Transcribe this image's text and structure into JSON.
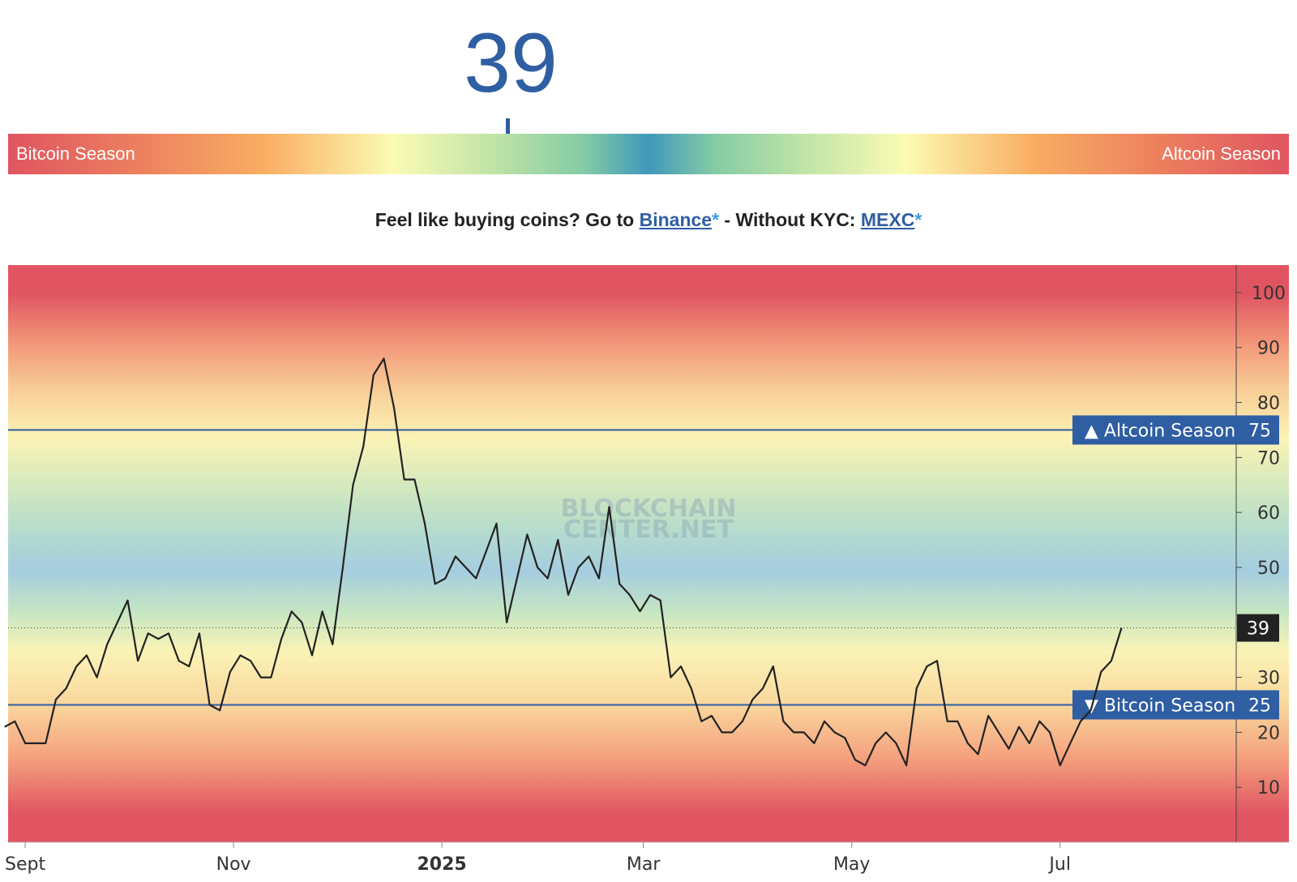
{
  "header": {
    "index_value": "39",
    "bitcoin_label": "Bitcoin Season",
    "altcoin_label": "Altcoin Season",
    "index_fraction": 0.39
  },
  "promo": {
    "prefix": "Feel like buying coins? Go to ",
    "binance": "Binance",
    "star": "*",
    "middle": " - Without KYC: ",
    "mexc": "MEXC"
  },
  "colors": {
    "accent": "#2f5ea3",
    "line": "#222222",
    "red": "#e05561",
    "blue": "#3f98bb",
    "yellow": "#fbfbb5"
  },
  "watermark": [
    "BLOCKCHAIN",
    "CENTER.NET"
  ],
  "chart_data": {
    "type": "line",
    "title": "",
    "ylim": [
      0,
      105
    ],
    "y_ticks": [
      10,
      20,
      30,
      40,
      50,
      60,
      70,
      80,
      90,
      100
    ],
    "y_tick_labels": [
      "10",
      "20",
      "30",
      "50",
      "60",
      "70",
      "80",
      "90",
      "100"
    ],
    "x_tick_labels": [
      "Sept",
      "Nov",
      "2025",
      "Mar",
      "May",
      "Jul"
    ],
    "x_tick_dates": [
      "2024-09-01",
      "2024-11-01",
      "2025-01-01",
      "2025-03-01",
      "2025-05-01",
      "2025-07-01"
    ],
    "xlim": [
      "2024-08-27",
      "2025-09-06"
    ],
    "grid": false,
    "thresholds": [
      {
        "label": "▲ Altcoin Season",
        "value": 75
      },
      {
        "label": "▼ Bitcoin Season",
        "value": 25
      }
    ],
    "current": {
      "label": "39",
      "value": 39
    },
    "series": [
      {
        "dates": [
          "2024-08-26",
          "2024-08-29",
          "2024-09-01",
          "2024-09-04",
          "2024-09-07",
          "2024-09-10",
          "2024-09-13",
          "2024-09-16",
          "2024-09-19",
          "2024-09-22",
          "2024-09-25",
          "2024-09-28",
          "2024-10-01",
          "2024-10-04",
          "2024-10-07",
          "2024-10-10",
          "2024-10-13",
          "2024-10-16",
          "2024-10-19",
          "2024-10-22",
          "2024-10-25",
          "2024-10-28",
          "2024-10-31",
          "2024-11-03",
          "2024-11-06",
          "2024-11-09",
          "2024-11-12",
          "2024-11-15",
          "2024-11-18",
          "2024-11-21",
          "2024-11-24",
          "2024-11-27",
          "2024-11-30",
          "2024-12-03",
          "2024-12-06",
          "2024-12-09",
          "2024-12-12",
          "2024-12-15",
          "2024-12-18",
          "2024-12-21",
          "2024-12-24",
          "2024-12-27",
          "2024-12-30",
          "2025-01-02",
          "2025-01-05",
          "2025-01-08",
          "2025-01-11",
          "2025-01-14",
          "2025-01-17",
          "2025-01-20",
          "2025-01-23",
          "2025-01-26",
          "2025-01-29",
          "2025-02-01",
          "2025-02-04",
          "2025-02-07",
          "2025-02-10",
          "2025-02-13",
          "2025-02-16",
          "2025-02-19",
          "2025-02-22",
          "2025-02-25",
          "2025-02-28",
          "2025-03-03",
          "2025-03-06",
          "2025-03-09",
          "2025-03-12",
          "2025-03-15",
          "2025-03-18",
          "2025-03-21",
          "2025-03-24",
          "2025-03-27",
          "2025-03-30",
          "2025-04-02",
          "2025-04-05",
          "2025-04-08",
          "2025-04-11",
          "2025-04-14",
          "2025-04-17",
          "2025-04-20",
          "2025-04-23",
          "2025-04-26",
          "2025-04-29",
          "2025-05-02",
          "2025-05-05",
          "2025-05-08",
          "2025-05-11",
          "2025-05-14",
          "2025-05-17",
          "2025-05-20",
          "2025-05-23",
          "2025-05-26",
          "2025-05-29",
          "2025-06-01",
          "2025-06-04",
          "2025-06-07",
          "2025-06-10",
          "2025-06-13",
          "2025-06-16",
          "2025-06-19",
          "2025-06-22",
          "2025-06-25",
          "2025-06-28",
          "2025-07-01",
          "2025-07-04",
          "2025-07-07",
          "2025-07-10",
          "2025-07-13",
          "2025-07-16",
          "2025-07-19"
        ],
        "values": [
          21,
          22,
          18,
          18,
          18,
          26,
          28,
          32,
          34,
          30,
          36,
          40,
          44,
          33,
          38,
          37,
          38,
          33,
          32,
          38,
          25,
          24,
          31,
          34,
          33,
          30,
          30,
          37,
          42,
          40,
          34,
          42,
          36,
          50,
          65,
          72,
          85,
          88,
          79,
          66,
          66,
          58,
          47,
          48,
          52,
          50,
          48,
          53,
          58,
          40,
          48,
          56,
          50,
          48,
          55,
          45,
          50,
          52,
          48,
          61,
          47,
          45,
          42,
          45,
          44,
          30,
          32,
          28,
          22,
          23,
          20,
          20,
          22,
          26,
          28,
          32,
          22,
          20,
          20,
          18,
          22,
          20,
          19,
          15,
          14,
          18,
          20,
          18,
          14,
          28,
          32,
          33,
          22,
          22,
          18,
          16,
          23,
          20,
          17,
          21,
          18,
          22,
          20,
          14,
          18,
          22,
          24,
          31,
          33,
          39
        ]
      }
    ]
  }
}
